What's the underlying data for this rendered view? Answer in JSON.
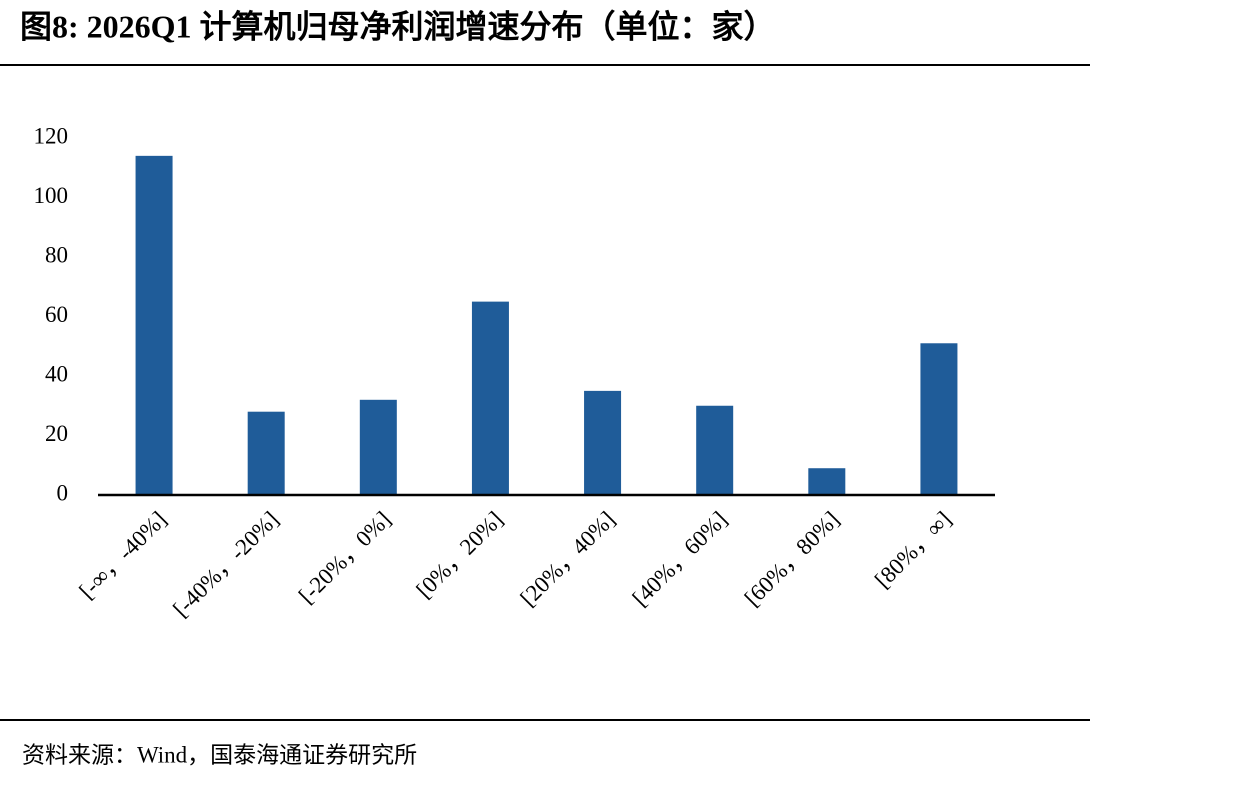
{
  "chart_data": {
    "type": "bar",
    "title": "图8:  2026Q1 计算机归母净利润增速分布（单位：家）",
    "source": "资料来源：Wind，国泰海通证券研究所",
    "categories": [
      "[-∞，-40%]",
      "[-40%，-20%]",
      "[-20%，0%]",
      "[0%，20%]",
      "[20%，40%]",
      "[40%，60%]",
      "[60%，80%]",
      "[80%，∞]"
    ],
    "values": [
      114,
      28,
      32,
      65,
      35,
      30,
      9,
      51
    ],
    "color": "#1f5c99",
    "ylim": [
      0,
      120
    ],
    "yticks": [
      0,
      20,
      40,
      60,
      80,
      100,
      120
    ],
    "grid": false
  }
}
